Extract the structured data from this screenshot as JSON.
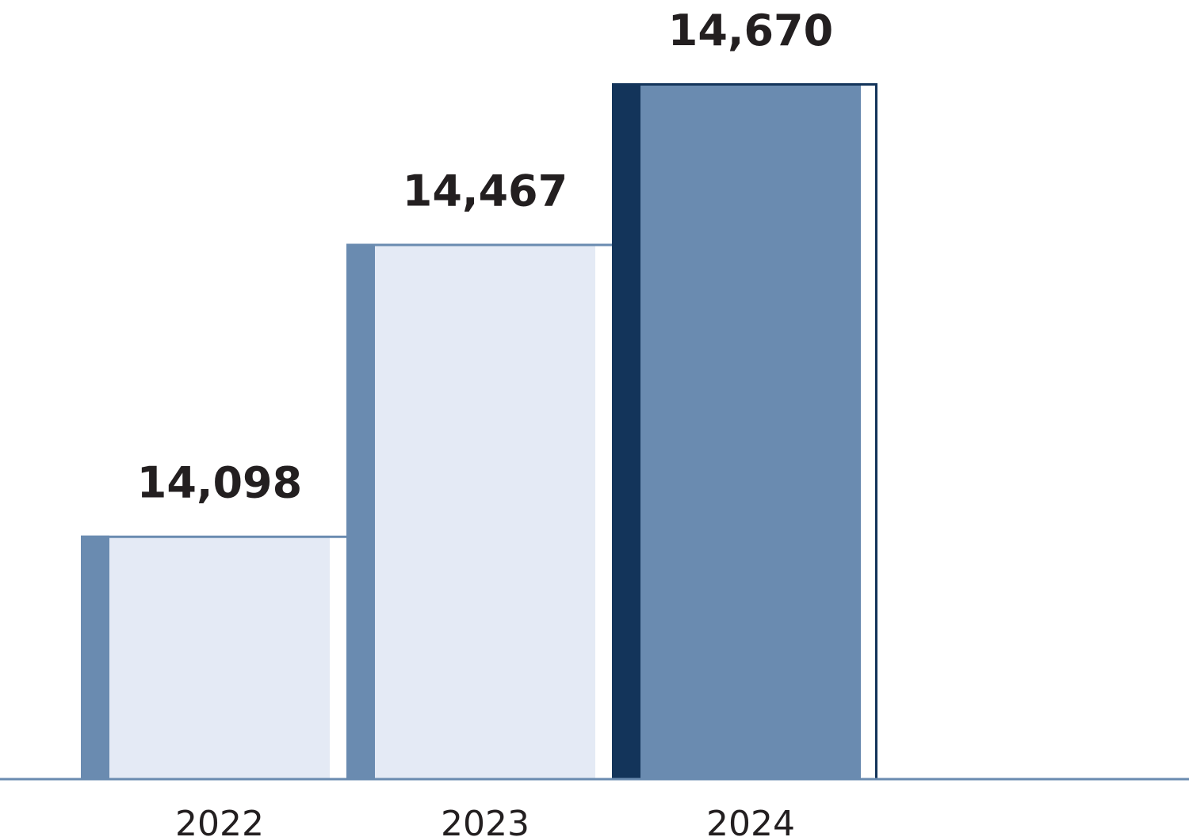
{
  "chart_data": {
    "type": "bar",
    "categories": [
      "2022",
      "2023",
      "2024"
    ],
    "values": [
      14098,
      14467,
      14670
    ],
    "value_labels": [
      "14,098",
      "14,467",
      "14,670"
    ],
    "colors": [
      "#e4eaf5",
      "#e4eaf5",
      "#6a8bb0"
    ],
    "edge_colors": [
      "#6a8bb0",
      "#6a8bb0",
      "#13345a"
    ],
    "ylim": [
      13790,
      14670
    ]
  }
}
